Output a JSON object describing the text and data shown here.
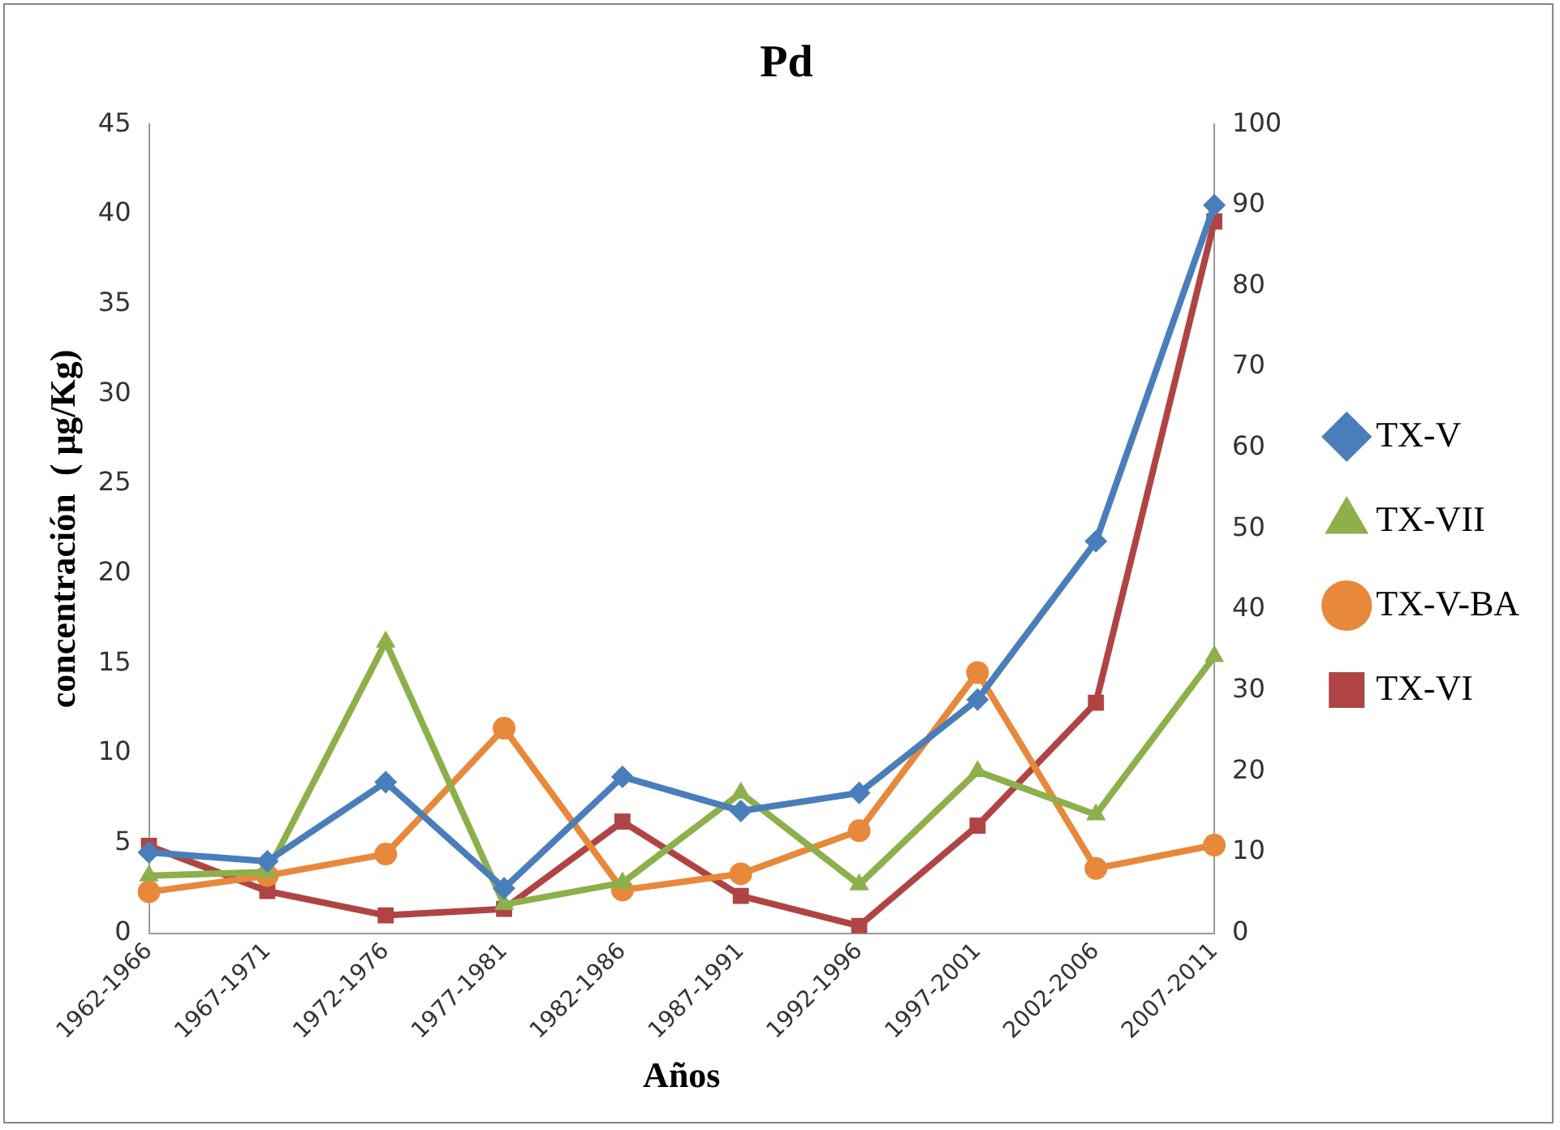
{
  "chart_data": {
    "type": "line",
    "title": "Pd",
    "xlabel": "Años",
    "ylabel": "concentración  ( μg/Kg)",
    "categories": [
      "1962-1966",
      "1967-1971",
      "1972-1976",
      "1977-1981",
      "1982-1986",
      "1987-1991",
      "1992-1996",
      "1997-2001",
      "2002-2006",
      "2007-2011"
    ],
    "series": [
      {
        "name": "TX-V",
        "color": "#4a7ebb",
        "marker": "diamond",
        "values": [
          4.5,
          4.0,
          8.4,
          2.5,
          8.7,
          6.8,
          7.8,
          13.0,
          21.8,
          40.5
        ]
      },
      {
        "name": "TX-VII",
        "color": "#8cb04a",
        "marker": "triangle",
        "values": [
          3.2,
          3.4,
          16.2,
          1.6,
          2.8,
          7.8,
          2.7,
          9.0,
          6.6,
          15.4
        ]
      },
      {
        "name": "TX-V-BA",
        "color": "#e8883a",
        "marker": "circle",
        "values": [
          2.3,
          3.2,
          4.4,
          11.4,
          2.4,
          3.3,
          5.7,
          14.5,
          3.6,
          4.9
        ]
      },
      {
        "name": "TX-VI",
        "color": "#b04444",
        "marker": "square",
        "axis": "y2",
        "values": [
          10.8,
          5.2,
          2.2,
          3.0,
          13.8,
          4.6,
          0.9,
          13.3,
          28.5,
          88
        ]
      }
    ],
    "ylim": [
      0,
      45
    ],
    "yticks": [
      0,
      5,
      10,
      15,
      20,
      25,
      30,
      35,
      40,
      45
    ],
    "y2lim": [
      0,
      100
    ],
    "y2ticks": [
      0,
      10,
      20,
      30,
      40,
      50,
      60,
      70,
      80,
      90,
      100
    ],
    "legend": "right",
    "grid": false,
    "line_style": "solid"
  }
}
